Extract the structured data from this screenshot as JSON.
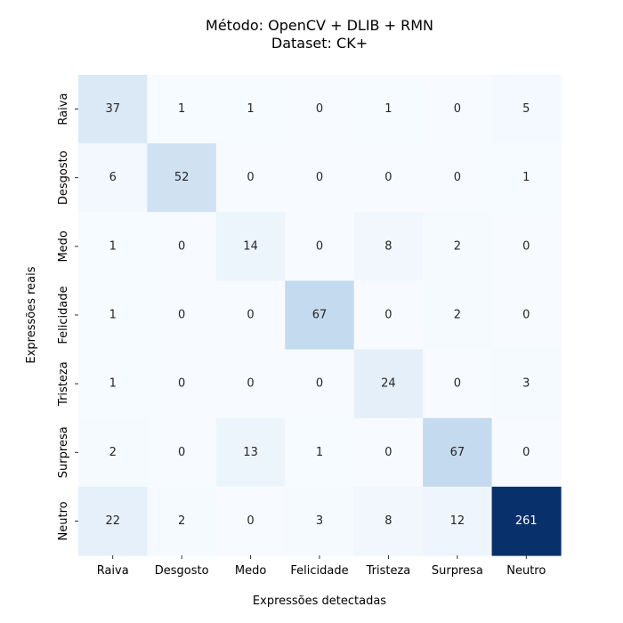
{
  "chart_data": {
    "type": "heatmap",
    "title": "Método: OpenCV + DLIB + RMN",
    "subtitle": "Dataset: CK+",
    "xlabel": "Expressões detectadas",
    "ylabel": "Expressões reais",
    "x_categories": [
      "Raiva",
      "Desgosto",
      "Medo",
      "Felicidade",
      "Tristeza",
      "Surpresa",
      "Neutro"
    ],
    "y_categories": [
      "Raiva",
      "Desgosto",
      "Medo",
      "Felicidade",
      "Tristeza",
      "Surpresa",
      "Neutro"
    ],
    "values": [
      [
        37,
        1,
        1,
        0,
        1,
        0,
        5
      ],
      [
        6,
        52,
        0,
        0,
        0,
        0,
        1
      ],
      [
        1,
        0,
        14,
        0,
        8,
        2,
        0
      ],
      [
        1,
        0,
        0,
        67,
        0,
        2,
        0
      ],
      [
        1,
        0,
        0,
        0,
        24,
        0,
        3
      ],
      [
        2,
        0,
        13,
        1,
        0,
        67,
        0
      ],
      [
        22,
        2,
        0,
        3,
        8,
        12,
        261
      ]
    ],
    "colormap": "Blues",
    "value_range": [
      0,
      261
    ],
    "colorbar": false
  }
}
